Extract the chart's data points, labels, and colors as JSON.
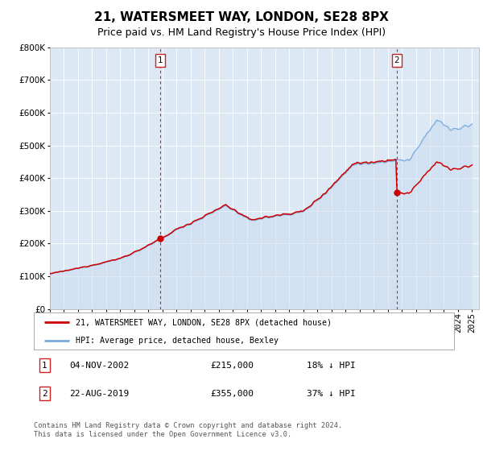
{
  "title": "21, WATERSMEET WAY, LONDON, SE28 8PX",
  "subtitle": "Price paid vs. HM Land Registry's House Price Index (HPI)",
  "ylim": [
    0,
    800000
  ],
  "yticks": [
    0,
    100000,
    200000,
    300000,
    400000,
    500000,
    600000,
    700000,
    800000
  ],
  "ytick_labels": [
    "£0",
    "£100K",
    "£200K",
    "£300K",
    "£400K",
    "£500K",
    "£600K",
    "£700K",
    "£800K"
  ],
  "xlim_start": 1995.0,
  "xlim_end": 2025.5,
  "fig_bg_color": "#ffffff",
  "plot_bg_color": "#dde8f5",
  "grid_color": "#ffffff",
  "transaction1_date": 2002.84,
  "transaction1_price": 215000,
  "transaction2_date": 2019.645,
  "transaction2_price": 355000,
  "hpi_color": "#7aaadd",
  "hpi_fill_color": "#c8dcf0",
  "price_color": "#cc0000",
  "marker_color": "#cc0000",
  "dashed_line_color": "#cc2222",
  "legend_text1": "21, WATERSMEET WAY, LONDON, SE28 8PX (detached house)",
  "legend_text2": "HPI: Average price, detached house, Bexley",
  "info1_date": "04-NOV-2002",
  "info1_price": "£215,000",
  "info1_pct": "18% ↓ HPI",
  "info2_date": "22-AUG-2019",
  "info2_price": "£355,000",
  "info2_pct": "37% ↓ HPI",
  "footer_text": "Contains HM Land Registry data © Crown copyright and database right 2024.\nThis data is licensed under the Open Government Licence v3.0.",
  "title_fontsize": 11,
  "subtitle_fontsize": 9,
  "tick_fontsize": 7.5
}
